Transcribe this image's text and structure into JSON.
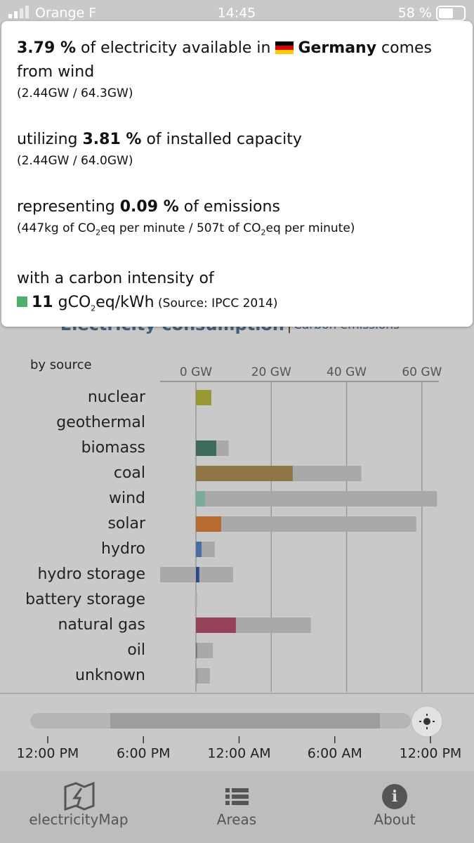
{
  "status_bar": {
    "carrier": "Orange F",
    "time": "14:45",
    "battery": "58 %"
  },
  "tooltip": {
    "share": "3.79 %",
    "share_text": " of electricity available in ",
    "zone": "Germany",
    "share_end": " comes from wind",
    "share_detail": "(2.44GW / 64.3GW)",
    "util_start": "utilizing ",
    "util": "3.81 %",
    "util_text": " of installed capacity",
    "util_detail": "(2.44GW / 64.0GW)",
    "emis_start": "representing ",
    "emis": "0.09 %",
    "emis_text": " of emissions",
    "emis_detail": [
      "(447kg of CO",
      "2",
      "eq per minute / 507t of CO",
      "2",
      "eq per minute)"
    ],
    "intensity_text": "with a carbon intensity of",
    "intensity": "11",
    "intensity_unit": [
      " gCO",
      "2",
      "eq/kWh"
    ],
    "intensity_source": " (Source: IPCC 2014)"
  },
  "header": {
    "tab_active": "Electricity consumption",
    "separator": "|",
    "tab_other": "Carbon emissions"
  },
  "chart_data": {
    "type": "bar",
    "orientation": "horizontal",
    "title": "by source",
    "categories": [
      "nuclear",
      "geothermal",
      "biomass",
      "coal",
      "wind",
      "solar",
      "hydro",
      "hydro storage",
      "battery storage",
      "natural gas",
      "oil",
      "unknown"
    ],
    "series": [
      {
        "color": "#a9a9a9",
        "values": [
          4.1,
          0.04,
          8.7,
          43.9,
          64.0,
          58.5,
          5.0,
          9.9,
          0.3,
          30.5,
          4.5,
          3.7
        ]
      },
      {
        "color": "#a9a9a9",
        "values": [
          null,
          null,
          null,
          null,
          null,
          null,
          null,
          -9.5,
          -0.2,
          null,
          null,
          null
        ]
      },
      {
        "colors": [
          "#999933",
          "#a8a860",
          "#3c6b5c",
          "#8f7444",
          "#7aaa9a",
          "#b86b30",
          "#4a6ea0",
          "#2a4b8a",
          "#8a6a98",
          "#954158",
          "#776f5e",
          "#999999"
        ],
        "values": [
          4.1,
          0.04,
          5.4,
          25.7,
          2.44,
          6.7,
          1.5,
          0.9,
          0,
          10.6,
          0.3,
          0.5
        ]
      }
    ],
    "xlim": [
      -9.5,
      64.5
    ],
    "xticks": [
      {
        "value": 0,
        "label": "0 GW"
      },
      {
        "value": 20,
        "label": "20 GW"
      },
      {
        "value": 40,
        "label": "40 GW"
      },
      {
        "value": 60,
        "label": "60 GW"
      }
    ],
    "grid": true
  },
  "timeline": {
    "labels": [
      "12:00 PM",
      "6:00 PM",
      "12:00 AM",
      "6:00 AM",
      "12:00 PM"
    ]
  },
  "tab_bar": {
    "tabs": [
      "electricityMap",
      "Areas",
      "About"
    ]
  }
}
